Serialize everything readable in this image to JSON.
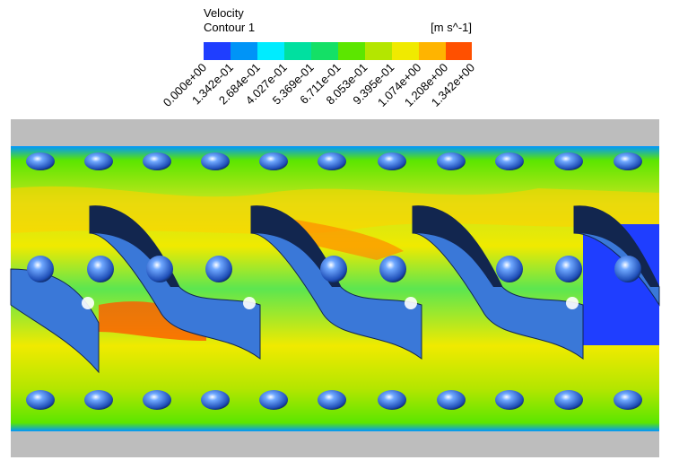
{
  "legend": {
    "title": "Velocity",
    "subtitle": "Contour 1",
    "unit": "[m s^-1]",
    "ticks": [
      "0.000e+00",
      "1.342e-01",
      "2.684e-01",
      "4.027e-01",
      "5.369e-01",
      "6.711e-01",
      "8.053e-01",
      "9.395e-01",
      "1.074e+00",
      "1.208e+00",
      "1.342e+00"
    ]
  }
}
